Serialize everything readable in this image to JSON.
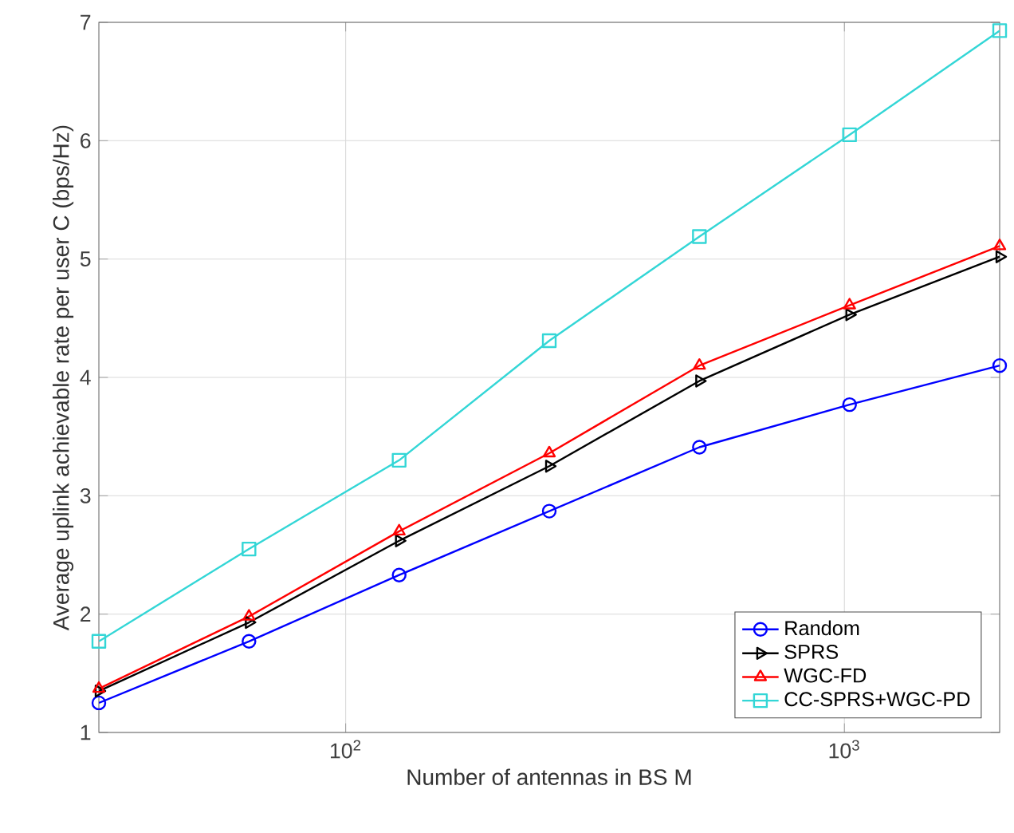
{
  "chart_data": {
    "type": "line",
    "xlabel": "Number of antennas in BS M",
    "ylabel": "Average uplink achievable rate per user C (bps/Hz)",
    "x": [
      32,
      64,
      128,
      256,
      512,
      1024,
      2048
    ],
    "xlim": [
      32,
      2048
    ],
    "ylim": [
      1,
      7
    ],
    "log": "x",
    "xticks": [
      {
        "value": 100,
        "label": "10$^{2}$"
      },
      {
        "value": 1000,
        "label": "10$^{3}$"
      }
    ],
    "yticks": [
      1,
      2,
      3,
      4,
      5,
      6,
      7
    ],
    "grid": true,
    "legend": "bottom right",
    "line_style": "solid",
    "series": [
      {
        "name": "Random",
        "color": "#0000ff",
        "marker": "circle",
        "values": [
          1.25,
          1.77,
          2.33,
          2.87,
          3.41,
          3.77,
          4.1
        ]
      },
      {
        "name": "SPRS",
        "color": "#000000",
        "marker": "triangle-right",
        "values": [
          1.35,
          1.93,
          2.62,
          3.25,
          3.97,
          4.53,
          5.02
        ]
      },
      {
        "name": "WGC-FD",
        "color": "#ff0000",
        "marker": "triangle",
        "values": [
          1.37,
          1.98,
          2.7,
          3.36,
          4.1,
          4.61,
          5.11
        ]
      },
      {
        "name": "CC-SPRS+WGC-PD",
        "color": "#33d6d6",
        "marker": "square",
        "values": [
          1.77,
          2.55,
          3.3,
          4.31,
          5.19,
          6.05,
          6.93
        ]
      }
    ]
  }
}
